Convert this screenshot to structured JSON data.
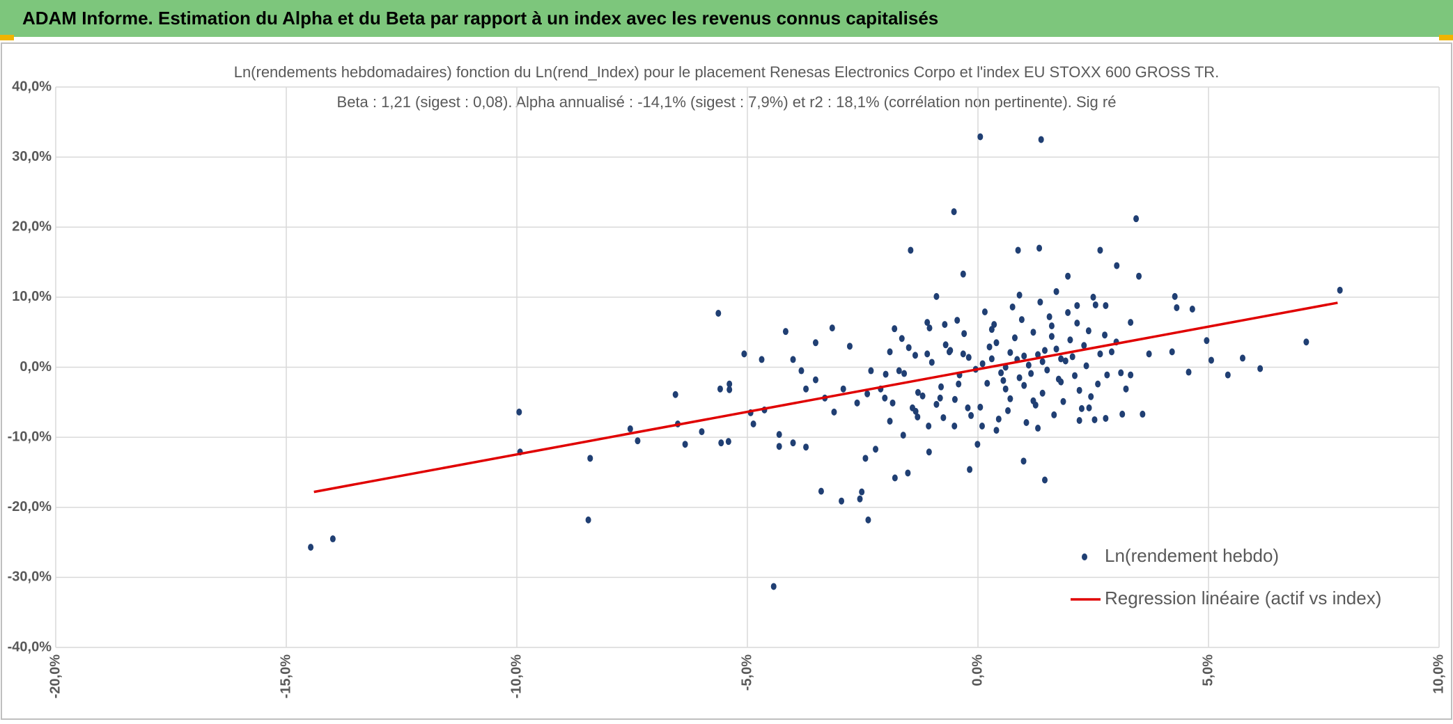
{
  "header": {
    "title": "ADAM Informe. Estimation du Alpha et du Beta par rapport à un index avec les revenus connus capitalisés"
  },
  "chart_data": {
    "type": "scatter",
    "title": "Ln(rendements hebdomadaires) fonction du Ln(rend_Index) pour le placement Renesas Electronics Corpo et l'index EU STOXX 600 GROSS TR.",
    "subtitle": "Beta : 1,21 (sigest : 0,08). Alpha annualisé : -14,1% (sigest : 7,9%) et r2 : 18,1% (corrélation non pertinente). Sig ré",
    "xlim": [
      -20,
      10
    ],
    "xticks": [
      {
        "value": -20,
        "label": "-20,0%"
      },
      {
        "value": -15,
        "label": "-15,0%"
      },
      {
        "value": -10,
        "label": "-10,0%"
      },
      {
        "value": -5,
        "label": "-5,0%"
      },
      {
        "value": 0,
        "label": "0,0%"
      },
      {
        "value": 5,
        "label": "5,0%"
      },
      {
        "value": 10,
        "label": "10,0%"
      }
    ],
    "ylim": [
      -40,
      40
    ],
    "yticks": [
      {
        "value": -40,
        "label": "-40,0%"
      },
      {
        "value": -30,
        "label": "-30,0%"
      },
      {
        "value": -20,
        "label": "-20,0%"
      },
      {
        "value": -10,
        "label": "-10,0%"
      },
      {
        "value": 0,
        "label": "0,0%"
      },
      {
        "value": 10,
        "label": "10,0%"
      },
      {
        "value": 20,
        "label": "20,0%"
      },
      {
        "value": 30,
        "label": "30,0%"
      },
      {
        "value": 40,
        "label": "40,0%"
      }
    ],
    "grid": true,
    "legend": "bottom-right",
    "series": [
      {
        "name": "Ln(rendement hebdo)",
        "type": "scatter",
        "color": "#203f73",
        "x": [
          -14.47,
          -13.99,
          -9.95,
          -9.93,
          -8.41,
          -8.45,
          -7.54,
          -7.38,
          -6.56,
          -6.51,
          -6.35,
          -5.99,
          -5.63,
          -5.59,
          -5.57,
          -5.41,
          -5.39,
          -5.07,
          -5.39,
          -4.93,
          -4.87,
          -4.69,
          -4.63,
          -4.43,
          -4.17,
          -4.31,
          -4.31,
          -4.01,
          -4.01,
          -3.73,
          -3.52,
          -3.4,
          -3.16,
          -2.96,
          -2.78,
          -2.56,
          -2.52,
          -2.38,
          -2.22,
          -2.44,
          -1.8,
          -1.46,
          -1.36,
          -1.52,
          -1.06,
          -0.52,
          -0.32,
          -0.18,
          0.05,
          1.37,
          1.33,
          0.87,
          1.45,
          0.99,
          2.65,
          3.01,
          3.43,
          3.49,
          3.57,
          4.31,
          4.65,
          4.96,
          5.06,
          5.42,
          5.74,
          6.12,
          7.12,
          7.85,
          3.31,
          3.71,
          4.21,
          4.27,
          4.57,
          3.31,
          2.77,
          2.15,
          1.95,
          2.53,
          2.77,
          2.41,
          3.13,
          3.21,
          -1.1,
          -0.9,
          -0.32,
          0.09,
          -0.01,
          -1.07,
          -0.51,
          -1.31,
          -1.91,
          -2.11,
          -1.91,
          -1.71,
          -1.81,
          -2.62,
          -2.92,
          -3.12,
          -3.32,
          -3.52,
          -3.73,
          -3.83,
          -2.32,
          -2.02,
          -1.62,
          -1.42,
          -0.82,
          -0.62,
          -0.72,
          -0.42,
          -0.22,
          0.1,
          0.3,
          0.5,
          0.7,
          0.9,
          1.1,
          1.3,
          1.5,
          1.7,
          1.9,
          2.1,
          2.3,
          0.2,
          0.4,
          0.6,
          0.8,
          1.0,
          1.2,
          1.4,
          1.6,
          1.8,
          2.0,
          2.2,
          2.4,
          -0.2,
          -0.4,
          -0.6,
          -0.8,
          -1.0,
          -1.2,
          -0.3,
          -0.5,
          -0.7,
          -0.9,
          -1.1,
          -1.3,
          -1.5,
          0.05,
          0.35,
          0.65,
          0.95,
          1.25,
          1.55,
          1.85,
          2.15,
          2.45,
          2.75,
          2.6,
          2.9,
          3.1,
          0.15,
          0.45,
          0.75,
          1.05,
          1.35,
          1.65,
          1.95,
          2.25,
          2.55,
          -0.15,
          -0.45,
          -0.75,
          -1.05,
          -1.35,
          -1.65,
          -1.85,
          0.25,
          0.55,
          0.85,
          1.15,
          1.45,
          1.75,
          2.05,
          2.35,
          2.65,
          -0.05,
          0.6,
          1.0,
          1.4,
          1.8,
          0.7,
          1.2,
          1.6,
          0.3,
          2.8,
          3.0,
          -2.0,
          -2.4,
          -1.6,
          0.9,
          1.7,
          2.5,
          0.4,
          1.3,
          2.2
        ],
        "values": [
          -25.7,
          -24.5,
          -6.4,
          -12.1,
          -13.0,
          -21.8,
          -8.8,
          -10.5,
          -3.9,
          -8.1,
          -11.0,
          -9.2,
          7.7,
          -3.1,
          -10.8,
          -10.6,
          -2.4,
          1.9,
          -3.2,
          -6.5,
          -8.1,
          1.1,
          -6.1,
          -31.3,
          5.1,
          -9.6,
          -11.3,
          1.1,
          -10.8,
          -11.4,
          3.5,
          -17.7,
          5.6,
          -19.1,
          3.0,
          -18.8,
          -17.8,
          -21.8,
          -11.7,
          -13.0,
          -15.8,
          16.7,
          1.7,
          -15.1,
          -12.1,
          22.2,
          1.9,
          -14.6,
          32.9,
          32.5,
          17.0,
          16.7,
          -16.1,
          -13.4,
          16.7,
          14.5,
          21.2,
          13.0,
          -6.7,
          8.5,
          8.3,
          3.8,
          1.0,
          -1.1,
          1.3,
          -0.2,
          3.6,
          11.0,
          -1.1,
          1.9,
          2.2,
          10.1,
          -0.7,
          6.4,
          8.8,
          8.8,
          13.0,
          -7.5,
          -7.3,
          -5.8,
          -6.7,
          -3.1,
          6.4,
          10.1,
          13.3,
          -8.4,
          -11.0,
          -8.4,
          -8.4,
          -7.1,
          -7.7,
          -3.1,
          2.2,
          -0.5,
          5.5,
          -5.1,
          -3.1,
          -6.4,
          -4.4,
          -1.8,
          -3.1,
          -0.5,
          -0.5,
          -4.4,
          -9.7,
          -5.8,
          -4.4,
          2.2,
          6.1,
          -2.4,
          -5.8,
          0.5,
          1.2,
          -0.8,
          2.1,
          -1.5,
          0.3,
          1.8,
          -0.4,
          2.6,
          0.9,
          -1.2,
          3.1,
          -2.3,
          3.5,
          -3.1,
          4.2,
          -2.6,
          5.0,
          -3.7,
          4.4,
          -2.1,
          3.9,
          -3.3,
          5.2,
          1.4,
          -1.1,
          2.4,
          -2.8,
          0.7,
          -4.1,
          4.8,
          -4.6,
          3.2,
          -5.3,
          1.9,
          -3.6,
          2.8,
          -5.7,
          6.1,
          -6.2,
          6.8,
          -5.4,
          7.2,
          -4.9,
          6.3,
          -4.2,
          4.6,
          -2.4,
          2.2,
          -0.8,
          7.9,
          -7.4,
          8.6,
          -7.9,
          9.3,
          -6.8,
          7.8,
          -5.9,
          8.9,
          -6.9,
          6.7,
          -7.2,
          5.6,
          -6.3,
          4.1,
          -5.1,
          2.9,
          -1.9,
          1.1,
          -0.9,
          2.4,
          -1.7,
          1.5,
          0.2,
          1.9,
          -0.3,
          0.0,
          1.6,
          0.8,
          1.2,
          -4.5,
          -4.8,
          5.9,
          5.4,
          -1.1,
          3.6,
          -1.0,
          -3.8,
          -0.9,
          10.3,
          10.8,
          10.0,
          -9.0,
          -8.7,
          -7.6
        ]
      },
      {
        "name": "Regression linéaire (actif vs index)",
        "type": "line",
        "color": "#e00000",
        "x": [
          -14.4,
          7.8
        ],
        "values": [
          -17.8,
          9.2
        ]
      }
    ]
  }
}
